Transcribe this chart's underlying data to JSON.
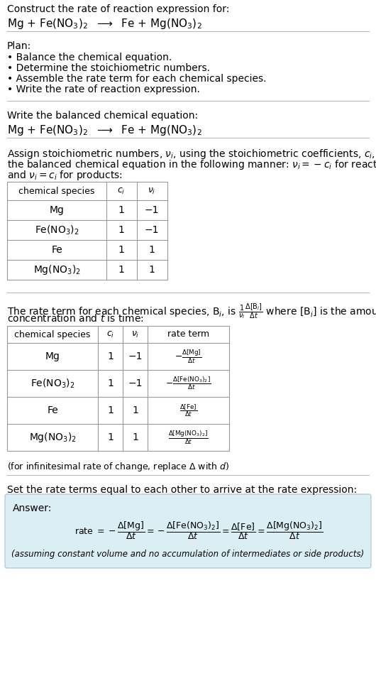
{
  "bg_color": "#ffffff",
  "text_color": "#000000",
  "answer_bg": "#daeef3",
  "title_text": "Construct the rate of reaction expression for:",
  "plan_header": "Plan:",
  "plan_items": [
    "• Balance the chemical equation.",
    "• Determine the stoichiometric numbers.",
    "• Assemble the rate term for each chemical species.",
    "• Write the rate of reaction expression."
  ],
  "balanced_header": "Write the balanced chemical equation:",
  "stoich_intro_1": "Assign stoichiometric numbers, $\\nu_i$, using the stoichiometric coefficients, $c_i$, from",
  "stoich_intro_2": "the balanced chemical equation in the following manner: $\\nu_i = -c_i$ for reactants",
  "stoich_intro_3": "and $\\nu_i = c_i$ for products:",
  "table1_headers": [
    "chemical species",
    "$c_i$",
    "$\\nu_i$"
  ],
  "table1_rows": [
    [
      "Mg",
      "1",
      "−1"
    ],
    [
      "Fe(NO$_3$)$_2$",
      "1",
      "−1"
    ],
    [
      "Fe",
      "1",
      "1"
    ],
    [
      "Mg(NO$_3$)$_2$",
      "1",
      "1"
    ]
  ],
  "rate_intro_1": "The rate term for each chemical species, B$_i$, is $\\frac{1}{\\nu_i}\\frac{\\Delta[\\mathrm{B}_i]}{\\Delta t}$ where [B$_i$] is the amount",
  "rate_intro_2": "concentration and $t$ is time:",
  "table2_headers": [
    "chemical species",
    "$c_i$",
    "$\\nu_i$",
    "rate term"
  ],
  "table2_rows": [
    [
      "Mg",
      "1",
      "−1",
      "$-\\frac{\\Delta[\\mathrm{Mg}]}{\\Delta t}$"
    ],
    [
      "Fe(NO$_3$)$_2$",
      "1",
      "−1",
      "$-\\frac{\\Delta[\\mathrm{Fe(NO_3)_2}]}{\\Delta t}$"
    ],
    [
      "Fe",
      "1",
      "1",
      "$\\frac{\\Delta[\\mathrm{Fe}]}{\\Delta t}$"
    ],
    [
      "Mg(NO$_3$)$_2$",
      "1",
      "1",
      "$\\frac{\\Delta[\\mathrm{Mg(NO_3)_2}]}{\\Delta t}$"
    ]
  ],
  "infinitesimal_note": "(for infinitesimal rate of change, replace Δ with $d$)",
  "set_equal_text": "Set the rate terms equal to each other to arrive at the rate expression:",
  "answer_label": "Answer:",
  "answer_note": "(assuming constant volume and no accumulation of intermediates or side products)"
}
